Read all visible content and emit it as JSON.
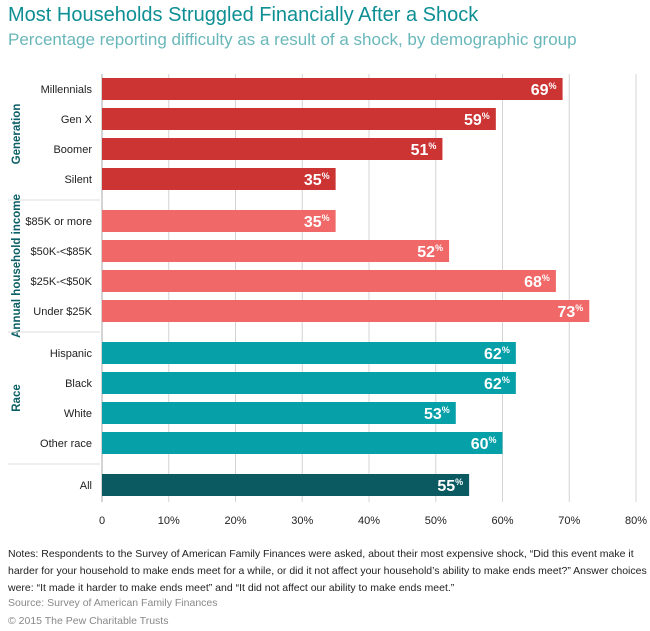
{
  "chart_data": {
    "type": "bar",
    "orientation": "horizontal",
    "title": "Most Households Struggled Financially After a Shock",
    "subtitle": "Percentage reporting difficulty as a result of a shock, by demographic group",
    "xlim": [
      0,
      80
    ],
    "xticks": [
      "0",
      "10%",
      "20%",
      "30%",
      "40%",
      "50%",
      "60%",
      "70%",
      "80%"
    ],
    "grid": true,
    "groups": [
      {
        "label": "Generation",
        "color": "#cc3333",
        "categories": [
          "Millennials",
          "Gen X",
          "Boomer",
          "Silent"
        ],
        "values": [
          69,
          59,
          51,
          35
        ]
      },
      {
        "label": "Annual household income",
        "color": "#f06868",
        "categories": [
          "$85K or more",
          "$50K-<$85K",
          "$25K-<$50K",
          "Under $25K"
        ],
        "values": [
          35,
          52,
          68,
          73
        ]
      },
      {
        "label": "Race",
        "color": "#05a0a8",
        "categories": [
          "Hispanic",
          "Black",
          "White",
          "Other race"
        ],
        "values": [
          62,
          62,
          53,
          60
        ]
      },
      {
        "label": "",
        "color": "#0b5a62",
        "categories": [
          "All"
        ],
        "values": [
          55
        ]
      }
    ],
    "value_suffix": "%"
  },
  "notes": "Notes: Respondents to the Survey of American Family Finances were asked, about their most expensive shock, “Did this event make it harder for your household to make ends meet for a while, or did it not affect your household’s ability to make ends meet?” Answer choices were: “It made it harder to make ends meet” and “It did not affect our ability to make ends meet.”",
  "source": "Source: Survey of American Family Finances",
  "copyright": "© 2015 The Pew Charitable Trusts"
}
